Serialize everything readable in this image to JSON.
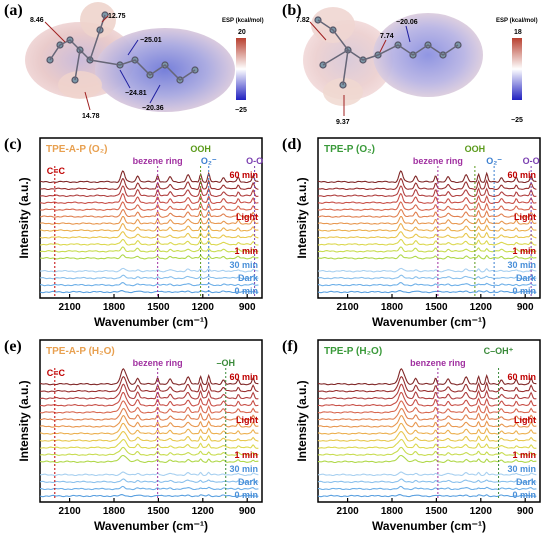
{
  "panel_a": {
    "letter": "(a)",
    "esp_title": "ESP (kcal/mol)",
    "esp_max": "20",
    "esp_min": "−25",
    "values": [
      "8.46",
      "12.75",
      "−25.01",
      "−24.81",
      "−20.36",
      "14.78"
    ]
  },
  "panel_b": {
    "letter": "(b)",
    "esp_title": "ESP (kcal/mol)",
    "esp_max": "18",
    "esp_min": "−25",
    "values": [
      "7.82",
      "7.74",
      "−20.06",
      "9.37"
    ]
  },
  "colors": {
    "axis": "#000000",
    "dark_blue": "#4a90d9",
    "light_red": "#c00000",
    "ooh": "#5a9a1a",
    "o2": "#3b7fd0",
    "oo": "#7a3fb0",
    "ring": "#a030a0",
    "cc": "#c00000",
    "title_orange": "#e8a050",
    "title_green": "#3a9a3a",
    "oh_green": "#3a8a3a"
  },
  "chart_data": [
    {
      "panel": "(c)",
      "type": "line",
      "title": "TPE-A-P (O₂)",
      "xlabel": "Wavenumber (cm⁻¹)",
      "ylabel": "Intensity (a.u.)",
      "xlim": [
        2300,
        800
      ],
      "x_ticks": [
        "2100",
        "1800",
        "1500",
        "1200",
        "900"
      ],
      "dark_label": "Dark",
      "light_label": "Light",
      "time_labels": [
        "0 min",
        "30 min",
        "1 min",
        "60 min"
      ],
      "markers": [
        {
          "label": "C≡C",
          "x": 2200,
          "color": "#c00000"
        },
        {
          "label": "bezene ring",
          "x": 1505,
          "color": "#a030a0"
        },
        {
          "label": "OOH",
          "x": 1215,
          "color": "#5a9a1a"
        },
        {
          "label": "O₂⁻",
          "x": 1160,
          "color": "#3b7fd0"
        },
        {
          "label": "O-O",
          "x": 850,
          "color": "#7a3fb0"
        }
      ],
      "grid": false
    },
    {
      "panel": "(d)",
      "type": "line",
      "title": "TPE-P (O₂)",
      "xlabel": "Wavenumber (cm⁻¹)",
      "ylabel": "Intensity (a.u.)",
      "xlim": [
        2300,
        800
      ],
      "x_ticks": [
        "2100",
        "1800",
        "1500",
        "1200",
        "900"
      ],
      "dark_label": "Dark",
      "light_label": "Light",
      "time_labels": [
        "0 min",
        "30 min",
        "1 min",
        "60 min"
      ],
      "markers": [
        {
          "label": "bezene ring",
          "x": 1490,
          "color": "#a030a0"
        },
        {
          "label": "OOH",
          "x": 1240,
          "color": "#5a9a1a"
        },
        {
          "label": "O₂⁻",
          "x": 1110,
          "color": "#3b7fd0"
        },
        {
          "label": "O-O",
          "x": 860,
          "color": "#7a3fb0"
        }
      ],
      "grid": false
    },
    {
      "panel": "(e)",
      "type": "line",
      "title": "TPE-A-P (H₂O)",
      "xlabel": "Wavenumber (cm⁻¹)",
      "ylabel": "Intensity (a.u.)",
      "xlim": [
        2300,
        800
      ],
      "x_ticks": [
        "2100",
        "1800",
        "1500",
        "1200",
        "900"
      ],
      "dark_label": "Dark",
      "light_label": "Light",
      "time_labels": [
        "0 min",
        "30 min",
        "1 min",
        "60 min"
      ],
      "markers": [
        {
          "label": "C≡C",
          "x": 2200,
          "color": "#c00000"
        },
        {
          "label": "bezene ring",
          "x": 1505,
          "color": "#a030a0"
        },
        {
          "label": "–OH",
          "x": 1045,
          "color": "#3a8a3a"
        }
      ],
      "grid": false
    },
    {
      "panel": "(f)",
      "type": "line",
      "title": "TPE-P (H₂O)",
      "xlabel": "Wavenumber (cm⁻¹)",
      "ylabel": "Intensity (a.u.)",
      "xlim": [
        2300,
        800
      ],
      "x_ticks": [
        "2100",
        "1800",
        "1500",
        "1200",
        "900"
      ],
      "dark_label": "Dark",
      "light_label": "Light",
      "time_labels": [
        "0 min",
        "30 min",
        "1 min",
        "60 min"
      ],
      "markers": [
        {
          "label": "benzene ring",
          "x": 1490,
          "color": "#a030a0"
        },
        {
          "label": "C–OH⁺",
          "x": 1080,
          "color": "#3a8a3a"
        }
      ],
      "grid": false
    }
  ]
}
